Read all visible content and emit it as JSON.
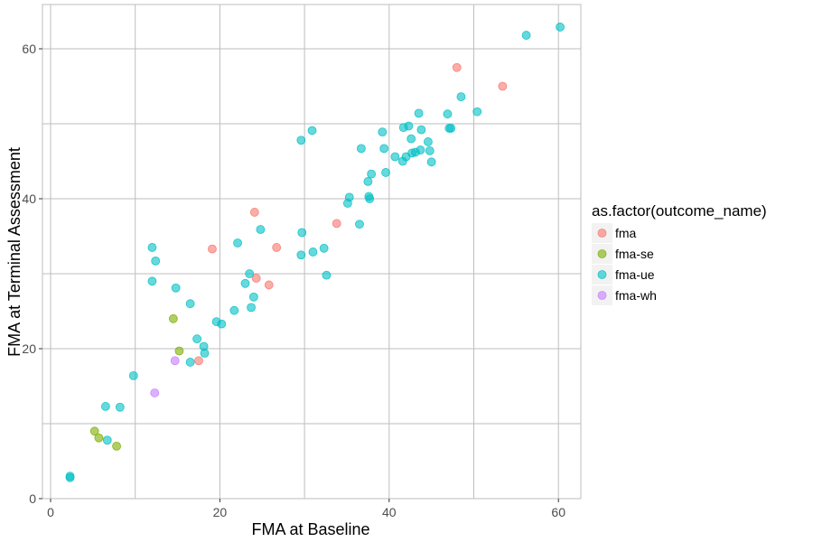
{
  "chart_data": {
    "type": "scatter",
    "title": "",
    "xlabel": "FMA at Baseline",
    "ylabel": "FMA at Terminal Assessment",
    "xlim": [
      0,
      62.5
    ],
    "ylim": [
      0,
      66
    ],
    "xticks": [
      0,
      20,
      40,
      60
    ],
    "yticks": [
      0,
      20,
      40,
      60
    ],
    "grid": true,
    "legend": {
      "title": "as.factor(outcome_name)",
      "placement": "right"
    },
    "series": [
      {
        "name": "fma",
        "color": "#F8766D",
        "points": [
          [
            19.1,
            33.3
          ],
          [
            17.5,
            18.4
          ],
          [
            24.1,
            38.2
          ],
          [
            24.3,
            29.4
          ],
          [
            25.8,
            28.5
          ],
          [
            26.7,
            33.5
          ],
          [
            33.8,
            36.7
          ],
          [
            48,
            57.5
          ],
          [
            53.4,
            55
          ]
        ]
      },
      {
        "name": "fma-se",
        "color": "#7CAE00",
        "points": [
          [
            14.5,
            24
          ],
          [
            15.2,
            19.7
          ],
          [
            5.2,
            9
          ],
          [
            5.7,
            8.1
          ],
          [
            7.8,
            7
          ]
        ]
      },
      {
        "name": "fma-ue",
        "color": "#00BFC4",
        "points": [
          [
            2.3,
            2.8
          ],
          [
            2.3,
            3
          ],
          [
            6.5,
            12.3
          ],
          [
            6.7,
            7.8
          ],
          [
            8.2,
            12.2
          ],
          [
            9.8,
            16.4
          ],
          [
            12,
            33.5
          ],
          [
            12,
            29
          ],
          [
            12.4,
            31.7
          ],
          [
            14.8,
            28.1
          ],
          [
            16.5,
            26
          ],
          [
            16.5,
            18.2
          ],
          [
            17.3,
            21.3
          ],
          [
            18.1,
            20.3
          ],
          [
            18.2,
            19.4
          ],
          [
            19.6,
            23.6
          ],
          [
            20.2,
            23.3
          ],
          [
            21.7,
            25.1
          ],
          [
            22.1,
            34.1
          ],
          [
            23,
            28.7
          ],
          [
            23.5,
            30
          ],
          [
            23.7,
            25.5
          ],
          [
            24,
            26.9
          ],
          [
            24.8,
            35.9
          ],
          [
            29.6,
            47.8
          ],
          [
            29.6,
            32.5
          ],
          [
            29.7,
            35.5
          ],
          [
            30.9,
            49.1
          ],
          [
            31,
            32.9
          ],
          [
            32.3,
            33.4
          ],
          [
            32.6,
            29.8
          ],
          [
            35.1,
            39.4
          ],
          [
            35.3,
            40.2
          ],
          [
            36.5,
            36.6
          ],
          [
            36.7,
            46.7
          ],
          [
            37.5,
            42.3
          ],
          [
            37.6,
            40.3
          ],
          [
            37.7,
            40
          ],
          [
            37.9,
            43.3
          ],
          [
            39.2,
            48.9
          ],
          [
            39.4,
            46.7
          ],
          [
            39.6,
            43.5
          ],
          [
            40.7,
            45.6
          ],
          [
            41.6,
            45
          ],
          [
            41.7,
            49.5
          ],
          [
            42,
            45.6
          ],
          [
            42.3,
            49.7
          ],
          [
            42.6,
            48
          ],
          [
            42.7,
            46.1
          ],
          [
            43.1,
            46.2
          ],
          [
            43.5,
            51.4
          ],
          [
            43.7,
            46.5
          ],
          [
            43.8,
            49.2
          ],
          [
            44.6,
            47.6
          ],
          [
            44.8,
            46.4
          ],
          [
            45,
            44.9
          ],
          [
            46.9,
            51.3
          ],
          [
            47.1,
            49.4
          ],
          [
            47.3,
            49.4
          ],
          [
            48.5,
            53.6
          ],
          [
            50.4,
            51.6
          ],
          [
            56.2,
            61.8
          ],
          [
            60.2,
            62.9
          ]
        ]
      },
      {
        "name": "fma-wh",
        "color": "#C77CFF",
        "points": [
          [
            12.3,
            14.1
          ],
          [
            14.7,
            18.4
          ]
        ]
      }
    ]
  }
}
